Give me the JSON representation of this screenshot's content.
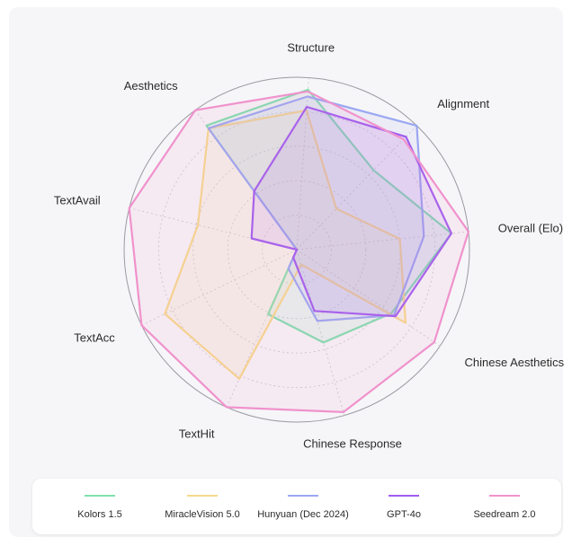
{
  "chart_data": {
    "type": "radar",
    "title": "",
    "axes": [
      "Structure",
      "Alignment",
      "Overall (Elo)",
      "Chinese Aesthetics",
      "Chinese Response",
      "TextHit",
      "TextAcc",
      "TextAvail",
      "Aesthetics"
    ],
    "range": [
      0,
      1
    ],
    "grid_levels": 5,
    "grid": true,
    "legend_position": "bottom",
    "series": [
      {
        "name": "Kolors 1.5",
        "color": "#7ee0ad",
        "values": [
          0.93,
          0.64,
          0.9,
          0.66,
          0.56,
          0.41,
          0,
          0,
          0.89
        ]
      },
      {
        "name": "MiracleVision 5.0",
        "color": "#f6d98a",
        "values": [
          0.81,
          0.33,
          0.6,
          0.76,
          0.09,
          0.82,
          0.85,
          0.59,
          0.87
        ]
      },
      {
        "name": "Hunyuan (Dec 2024)",
        "color": "#9aa7f2",
        "values": [
          0.89,
          1.0,
          0.74,
          0.68,
          0.43,
          0.12,
          0,
          0,
          0.87
        ]
      },
      {
        "name": "GPT-4o",
        "color": "#a05cf0",
        "values": [
          0.83,
          0.91,
          0.9,
          0.69,
          0.37,
          0.05,
          0,
          0.27,
          0.42
        ]
      },
      {
        "name": "Seedream 2.0",
        "color": "#f092cc",
        "values": [
          0.92,
          0.89,
          1.0,
          0.96,
          0.98,
          1.0,
          1.0,
          1.0,
          1.0
        ]
      }
    ]
  }
}
